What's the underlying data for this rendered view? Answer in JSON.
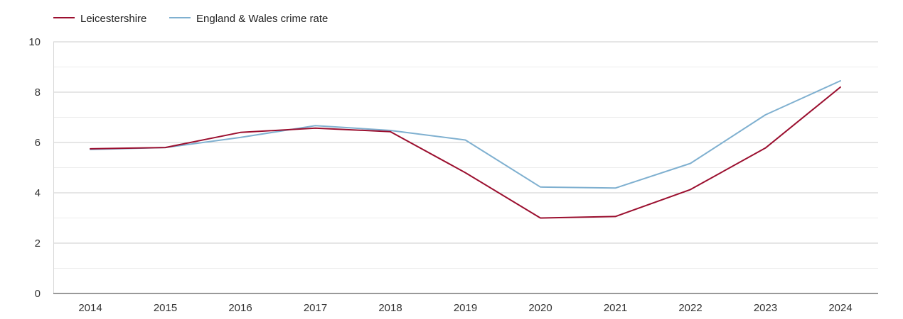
{
  "chart_data": {
    "type": "line",
    "title": "",
    "xlabel": "",
    "ylabel": "",
    "categories": [
      "2014",
      "2015",
      "2016",
      "2017",
      "2018",
      "2019",
      "2020",
      "2021",
      "2022",
      "2023",
      "2024"
    ],
    "ylim": [
      0,
      10
    ],
    "yticks": [
      0,
      2,
      4,
      6,
      8,
      10
    ],
    "grid": true,
    "legend_position": "top-left",
    "series": [
      {
        "name": "Leicestershire",
        "color": "#9b0f2f",
        "values": [
          5.75,
          5.8,
          6.4,
          6.57,
          6.43,
          4.8,
          3.0,
          3.06,
          4.13,
          5.78,
          8.2
        ]
      },
      {
        "name": "England & Wales crime rate",
        "color": "#7fb0d0",
        "values": [
          5.72,
          5.8,
          6.2,
          6.67,
          6.48,
          6.1,
          4.23,
          4.19,
          5.17,
          7.1,
          8.45
        ]
      }
    ]
  }
}
